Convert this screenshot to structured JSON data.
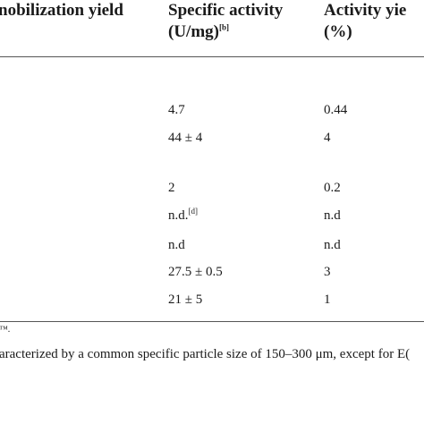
{
  "header": {
    "col1": "nobilization yield",
    "col2_line1": "Specific activity",
    "col2_line2": "(U/mg)",
    "col2_sup": "[b]",
    "col3_line1": "Activity yie",
    "col3_line2": "(%)"
  },
  "rows": [
    {
      "specific": "4.7",
      "specific_sup": "",
      "yield": "0.44"
    },
    {
      "specific": "44 ± 4",
      "specific_sup": "",
      "yield": "4"
    },
    {
      "specific": "2",
      "specific_sup": "",
      "yield": "0.2"
    },
    {
      "specific": "n.d.",
      "specific_sup": "[d]",
      "yield": "n.d"
    },
    {
      "specific": "n.d",
      "specific_sup": "",
      "yield": "n.d"
    },
    {
      "specific": "27.5 ± 0.5",
      "specific_sup": "",
      "yield": "3"
    },
    {
      "specific": "21 ± 5",
      "specific_sup": "",
      "yield": "1"
    }
  ],
  "footnotes": {
    "line1": "™.",
    "line2": "aracterized by a common specific particle size of 150–300 μm, except for E("
  }
}
